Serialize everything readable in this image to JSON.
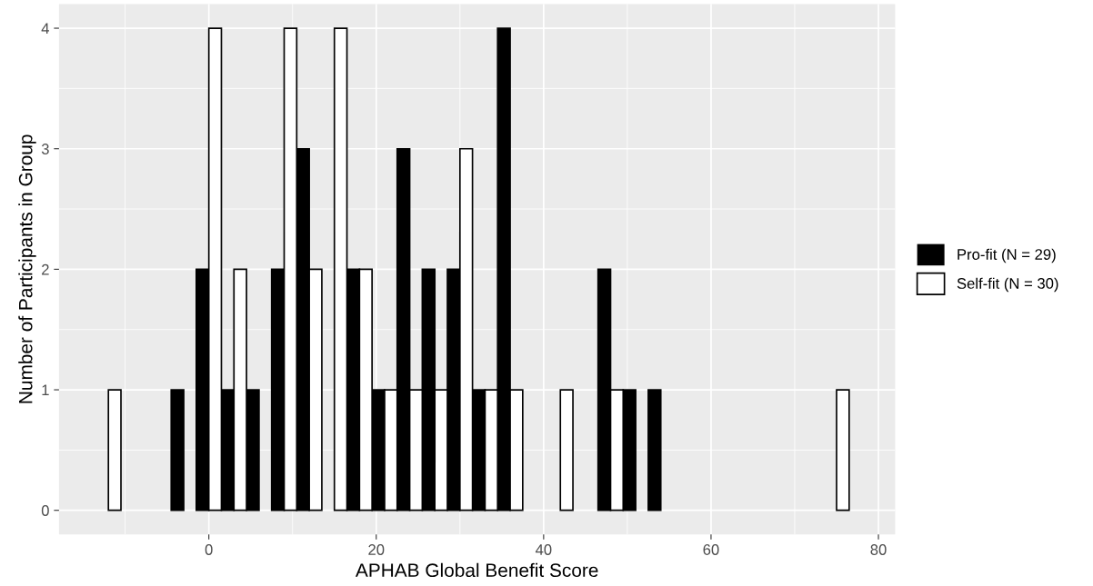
{
  "chart_data": {
    "type": "histogram",
    "xlabel": "APHAB Global Benefit Score",
    "ylabel": "Number of Participants in Group",
    "bins": [
      -13.5,
      -10.5,
      -7.5,
      -4.5,
      -1.5,
      1.5,
      4.5,
      7.5,
      10.5,
      13.5,
      16.5,
      19.5,
      22.5,
      25.5,
      28.5,
      31.5,
      34.5,
      37.5,
      40.5,
      43.5,
      46.5,
      49.5,
      52.5,
      55.5,
      58.5,
      61.5,
      64.5,
      67.5,
      70.5,
      73.5,
      76.5
    ],
    "series": [
      {
        "name": "Pro-fit (N = 29)",
        "color": "#000000",
        "values": [
          0,
          0,
          0,
          1,
          2,
          1,
          1,
          2,
          3,
          0,
          2,
          1,
          3,
          2,
          2,
          1,
          4,
          0,
          0,
          0,
          2,
          1,
          1,
          0,
          0,
          0,
          0,
          0,
          0,
          0
        ]
      },
      {
        "name": "Self-fit (N = 30)",
        "color": "#ffffff",
        "values": [
          1,
          0,
          0,
          0,
          4,
          2,
          0,
          4,
          2,
          4,
          2,
          1,
          1,
          1,
          3,
          1,
          1,
          0,
          1,
          0,
          1,
          0,
          0,
          0,
          0,
          0,
          0,
          0,
          0,
          1
        ]
      }
    ],
    "xlim": [
      -17.9,
      82
    ],
    "xticks": [
      0,
      20,
      40,
      60,
      80
    ],
    "ylim": [
      -0.2,
      4.2
    ],
    "yticks": [
      0,
      1,
      2,
      3,
      4
    ],
    "grid": true,
    "legend": "right"
  }
}
